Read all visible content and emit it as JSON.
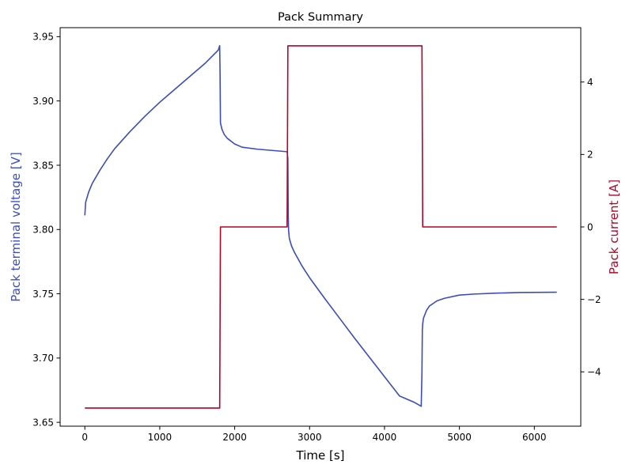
{
  "chart_data": {
    "type": "line",
    "title": "Pack Summary",
    "xlabel": "Time [s]",
    "ylabel_left": "Pack terminal voltage [V]",
    "ylabel_right": "Pack current [A]",
    "xlim": [
      -330,
      6620
    ],
    "ylim_left": [
      3.647,
      3.957
    ],
    "ylim_right": [
      -5.5,
      5.5
    ],
    "x_ticks": [
      0,
      1000,
      2000,
      3000,
      4000,
      5000,
      6000
    ],
    "y_left_ticks": [
      3.65,
      3.7,
      3.75,
      3.8,
      3.85,
      3.9,
      3.95
    ],
    "y_left_tick_labels": [
      "3.65",
      "3.70",
      "3.75",
      "3.80",
      "3.85",
      "3.90",
      "3.95"
    ],
    "y_right_ticks": [
      -4,
      -2,
      0,
      2,
      4
    ],
    "y_right_tick_labels": [
      "−4",
      "−2",
      "0",
      "2",
      "4"
    ],
    "grid": false,
    "colors": {
      "voltage": "#3b4cc0",
      "current": "#b40426",
      "axis": "#000000"
    },
    "series": [
      {
        "axis": "left",
        "color": "#3b4cc0",
        "x": [
          0,
          10,
          50,
          100,
          200,
          300,
          400,
          600,
          800,
          1000,
          1200,
          1400,
          1600,
          1780,
          1800,
          1805,
          1810,
          1830,
          1860,
          1900,
          2000,
          2100,
          2300,
          2500,
          2700,
          2710,
          2715,
          2720,
          2730,
          2760,
          2800,
          2900,
          3000,
          3200,
          3400,
          3600,
          3800,
          4000,
          4200,
          4400,
          4490,
          4500,
          4505,
          4510,
          4520,
          4560,
          4600,
          4700,
          4800,
          5000,
          5200,
          5500,
          5800,
          6300
        ],
        "y": [
          3.811,
          3.821,
          3.829,
          3.836,
          3.846,
          3.855,
          3.863,
          3.876,
          3.888,
          3.899,
          3.909,
          3.919,
          3.929,
          3.9395,
          3.943,
          3.92,
          3.883,
          3.878,
          3.874,
          3.871,
          3.8665,
          3.864,
          3.8625,
          3.8615,
          3.8605,
          3.855,
          3.81,
          3.799,
          3.793,
          3.787,
          3.782,
          3.7715,
          3.7625,
          3.7465,
          3.731,
          3.7155,
          3.7005,
          3.6855,
          3.6705,
          3.6655,
          3.6625,
          3.689,
          3.722,
          3.7265,
          3.731,
          3.737,
          3.7405,
          3.7445,
          3.7465,
          3.749,
          3.7498,
          3.7505,
          3.751,
          3.7512
        ]
      },
      {
        "axis": "right",
        "color": "#b40426",
        "x": [
          0,
          1800,
          1810,
          2700,
          2710,
          4500,
          4510,
          6300
        ],
        "y": [
          -5,
          -5,
          0,
          0,
          5,
          5,
          0,
          0
        ]
      }
    ]
  }
}
